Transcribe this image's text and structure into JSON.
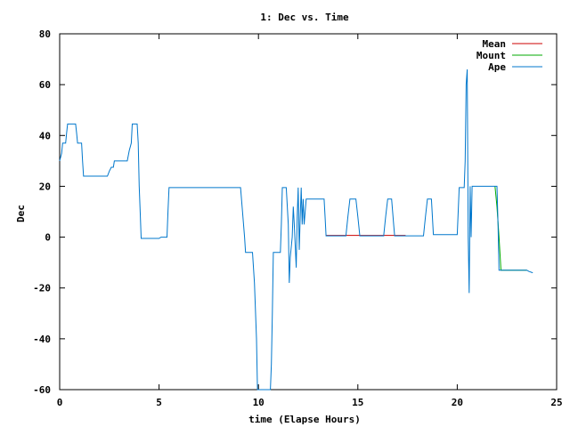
{
  "chart_data": {
    "type": "line",
    "title": "1: Dec vs. Time",
    "xlabel": "time (Elapse Hours)",
    "ylabel": "Dec",
    "xlim": [
      0,
      25
    ],
    "ylim": [
      -60,
      80
    ],
    "xticks": [
      0,
      5,
      10,
      15,
      20,
      25
    ],
    "yticks": [
      -60,
      -40,
      -20,
      0,
      20,
      40,
      60,
      80
    ],
    "grid": false,
    "legend_position": "top-right",
    "series": [
      {
        "name": "Mean",
        "color": "#cc0000",
        "points": [
          [
            13.4,
            0.7
          ],
          [
            14.5,
            0.7
          ],
          [
            15.6,
            0.7
          ],
          [
            16.4,
            0.7
          ],
          [
            16.9,
            0.7
          ],
          [
            17.4,
            0.7
          ]
        ]
      },
      {
        "name": "Mount",
        "color": "#00aa00",
        "points": [
          [
            21.9,
            20
          ],
          [
            22.0,
            12
          ],
          [
            22.1,
            0
          ],
          [
            22.2,
            -13
          ],
          [
            23.5,
            -13
          ]
        ]
      },
      {
        "name": "Ape",
        "color": "#0077cc",
        "points": [
          [
            0.0,
            30
          ],
          [
            0.1,
            33
          ],
          [
            0.15,
            37
          ],
          [
            0.3,
            37
          ],
          [
            0.35,
            41
          ],
          [
            0.4,
            44.5
          ],
          [
            0.8,
            44.5
          ],
          [
            0.85,
            41
          ],
          [
            0.9,
            37
          ],
          [
            1.1,
            37
          ],
          [
            1.15,
            30
          ],
          [
            1.2,
            24
          ],
          [
            2.4,
            24
          ],
          [
            2.5,
            26
          ],
          [
            2.6,
            27.5
          ],
          [
            2.7,
            27.5
          ],
          [
            2.75,
            30
          ],
          [
            3.4,
            30
          ],
          [
            3.5,
            34
          ],
          [
            3.6,
            37
          ],
          [
            3.65,
            44.5
          ],
          [
            3.9,
            44.5
          ],
          [
            3.95,
            37
          ],
          [
            4.0,
            20
          ],
          [
            4.05,
            10
          ],
          [
            4.1,
            -0.5
          ],
          [
            5.0,
            -0.5
          ],
          [
            5.1,
            0
          ],
          [
            5.4,
            0
          ],
          [
            5.45,
            10
          ],
          [
            5.5,
            19.5
          ],
          [
            9.1,
            19.5
          ],
          [
            9.2,
            10
          ],
          [
            9.3,
            0
          ],
          [
            9.35,
            -6
          ],
          [
            9.7,
            -6
          ],
          [
            9.8,
            -18
          ],
          [
            9.9,
            -40
          ],
          [
            9.95,
            -60
          ],
          [
            10.6,
            -60
          ],
          [
            10.65,
            -50
          ],
          [
            10.7,
            -30
          ],
          [
            10.75,
            -6
          ],
          [
            11.1,
            -6
          ],
          [
            11.15,
            5
          ],
          [
            11.2,
            19.5
          ],
          [
            11.4,
            19.5
          ],
          [
            11.5,
            5
          ],
          [
            11.55,
            -18
          ],
          [
            11.6,
            -8
          ],
          [
            11.7,
            0
          ],
          [
            11.75,
            12
          ],
          [
            11.8,
            5
          ],
          [
            11.9,
            -12
          ],
          [
            11.95,
            8
          ],
          [
            12.0,
            19.5
          ],
          [
            12.05,
            -5
          ],
          [
            12.1,
            8
          ],
          [
            12.15,
            19.5
          ],
          [
            12.2,
            5
          ],
          [
            12.25,
            15
          ],
          [
            12.3,
            5
          ],
          [
            12.4,
            15
          ],
          [
            13.3,
            15
          ],
          [
            13.35,
            8
          ],
          [
            13.4,
            0.5
          ],
          [
            14.4,
            0.5
          ],
          [
            14.5,
            8
          ],
          [
            14.6,
            15
          ],
          [
            14.9,
            15
          ],
          [
            15.0,
            8
          ],
          [
            15.1,
            0.5
          ],
          [
            16.3,
            0.5
          ],
          [
            16.4,
            8
          ],
          [
            16.5,
            15
          ],
          [
            16.7,
            15
          ],
          [
            16.8,
            5
          ],
          [
            16.85,
            0.5
          ],
          [
            17.6,
            0.5
          ],
          [
            18.0,
            0.5
          ],
          [
            18.3,
            0.5
          ],
          [
            18.4,
            8
          ],
          [
            18.5,
            15
          ],
          [
            18.7,
            15
          ],
          [
            18.75,
            8
          ],
          [
            18.8,
            1
          ],
          [
            20.0,
            1
          ],
          [
            20.1,
            19.5
          ],
          [
            20.35,
            19.5
          ],
          [
            20.4,
            30
          ],
          [
            20.45,
            60
          ],
          [
            20.5,
            66
          ],
          [
            20.55,
            0
          ],
          [
            20.6,
            -22
          ],
          [
            20.65,
            20
          ],
          [
            20.7,
            0
          ],
          [
            20.75,
            20
          ],
          [
            20.8,
            20
          ],
          [
            22.0,
            20
          ],
          [
            22.05,
            5
          ],
          [
            22.1,
            -13
          ],
          [
            23.5,
            -13
          ],
          [
            23.6,
            -13.5
          ],
          [
            23.8,
            -14
          ]
        ]
      }
    ]
  }
}
